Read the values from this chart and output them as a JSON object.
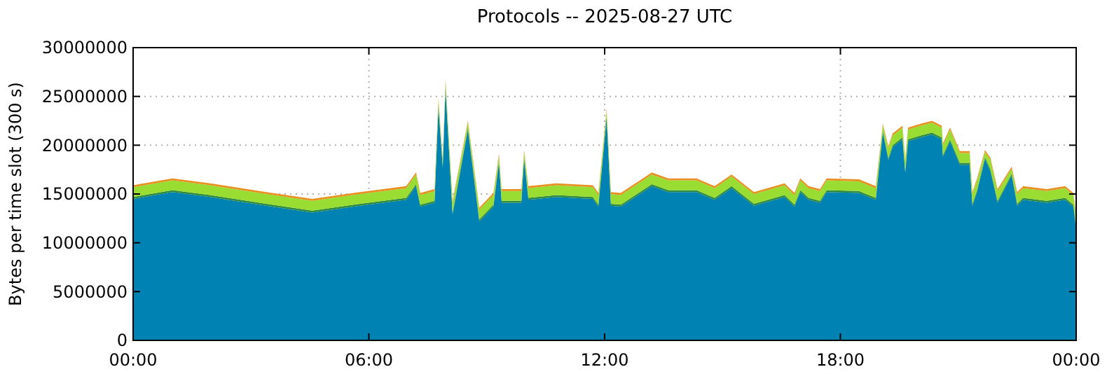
{
  "chart_data": {
    "type": "area",
    "stacked": true,
    "title": "Protocols -- 2025-08-27 UTC",
    "ylabel": "Bytes per time slot (300 s)",
    "x": [
      0,
      1.0,
      1.96,
      3.39,
      4.56,
      5.78,
      6.95,
      7.2,
      7.31,
      7.67,
      7.77,
      7.88,
      7.95,
      8.13,
      8.52,
      8.81,
      9.17,
      9.31,
      9.38,
      9.88,
      9.95,
      10.06,
      10.77,
      11.7,
      11.84,
      12.05,
      12.16,
      12.41,
      13.2,
      13.62,
      14.34,
      14.8,
      15.23,
      15.8,
      16.58,
      16.83,
      16.98,
      17.19,
      17.48,
      17.65,
      18.47,
      18.9,
      19.08,
      19.22,
      19.33,
      19.58,
      19.65,
      19.72,
      20.04,
      20.33,
      20.58,
      20.61,
      20.79,
      21.04,
      21.29,
      21.36,
      21.47,
      21.68,
      21.82,
      22.0,
      22.36,
      22.5,
      22.65,
      23.25,
      23.72,
      23.93,
      24
    ],
    "series": [
      {
        "color": "#0082b2",
        "values": [
          14500000,
          15200000,
          14700000,
          13800000,
          13100000,
          13800000,
          14400000,
          15800000,
          13700000,
          14100000,
          23900000,
          17700000,
          25800000,
          12900000,
          21600000,
          12200000,
          13700000,
          18200000,
          14100000,
          14100000,
          18600000,
          14400000,
          14700000,
          14500000,
          13700000,
          22800000,
          13800000,
          13700000,
          15800000,
          15200000,
          15200000,
          14400000,
          15600000,
          13800000,
          14700000,
          13700000,
          15200000,
          14400000,
          14100000,
          15200000,
          15100000,
          14400000,
          21300000,
          18500000,
          19800000,
          20600000,
          17200000,
          20400000,
          20800000,
          21100000,
          20600000,
          18800000,
          20400000,
          18000000,
          18000000,
          13800000,
          15100000,
          18600000,
          17300000,
          14100000,
          16900000,
          13800000,
          14400000,
          14100000,
          14400000,
          13700000,
          11400000
        ]
      },
      {
        "color": "#2e8b3e",
        "values": [
          200000,
          200000,
          200000,
          200000,
          200000,
          200000,
          200000,
          200000,
          200000,
          200000,
          200000,
          200000,
          200000,
          200000,
          200000,
          200000,
          200000,
          200000,
          200000,
          200000,
          200000,
          200000,
          200000,
          200000,
          200000,
          200000,
          200000,
          200000,
          200000,
          200000,
          200000,
          200000,
          200000,
          200000,
          200000,
          200000,
          200000,
          200000,
          200000,
          200000,
          200000,
          200000,
          200000,
          200000,
          200000,
          200000,
          200000,
          200000,
          200000,
          200000,
          200000,
          200000,
          200000,
          200000,
          200000,
          200000,
          200000,
          200000,
          200000,
          200000,
          200000,
          200000,
          200000,
          200000,
          200000,
          200000,
          200000
        ]
      },
      {
        "color": "#99dd33",
        "values": [
          1000000,
          1000000,
          1000000,
          1000000,
          1000000,
          1000000,
          1000000,
          1000000,
          1000000,
          1000000,
          500000,
          500000,
          500000,
          1000000,
          500000,
          1000000,
          1000000,
          500000,
          1000000,
          1000000,
          500000,
          1000000,
          1000000,
          1000000,
          1000000,
          500000,
          1000000,
          1000000,
          1000000,
          1000000,
          1000000,
          1000000,
          1000000,
          1000000,
          1000000,
          1000000,
          1000000,
          1000000,
          1000000,
          1000000,
          1000000,
          1000000,
          500000,
          1000000,
          1000000,
          1000000,
          1000000,
          1000000,
          1000000,
          1000000,
          1000000,
          1000000,
          1000000,
          1000000,
          1000000,
          1000000,
          1000000,
          500000,
          1000000,
          1000000,
          500000,
          1000000,
          1000000,
          1000000,
          1000000,
          1000000,
          1000000
        ]
      },
      {
        "color": "#e8901f",
        "values": [
          200000,
          200000,
          200000,
          200000,
          200000,
          200000,
          200000,
          200000,
          200000,
          200000,
          200000,
          200000,
          200000,
          200000,
          200000,
          200000,
          200000,
          200000,
          200000,
          200000,
          200000,
          200000,
          200000,
          200000,
          200000,
          200000,
          200000,
          200000,
          200000,
          200000,
          200000,
          200000,
          200000,
          200000,
          200000,
          200000,
          200000,
          200000,
          200000,
          200000,
          200000,
          200000,
          200000,
          200000,
          200000,
          200000,
          200000,
          200000,
          200000,
          200000,
          200000,
          200000,
          200000,
          200000,
          200000,
          200000,
          200000,
          200000,
          200000,
          200000,
          200000,
          200000,
          200000,
          200000,
          200000,
          200000,
          200000
        ]
      }
    ],
    "xlim": [
      0,
      24
    ],
    "xticks": [
      {
        "value": 0,
        "label": "00:00"
      },
      {
        "value": 6,
        "label": "06:00"
      },
      {
        "value": 12,
        "label": "12:00"
      },
      {
        "value": 18,
        "label": "18:00"
      },
      {
        "value": 24,
        "label": "00:00"
      }
    ],
    "ylim": [
      0,
      30000000
    ],
    "yticks": [
      0,
      5000000,
      10000000,
      15000000,
      20000000,
      25000000,
      30000000
    ],
    "grid": true
  }
}
